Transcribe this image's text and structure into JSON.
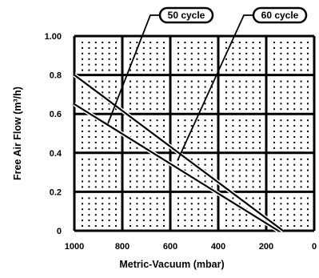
{
  "chart_data": {
    "type": "line",
    "title": "",
    "xlabel": "Metric-Vacuum (mbar)",
    "ylabel": "Free Air Flow (m³/h)",
    "xlim": [
      1000,
      0
    ],
    "ylim": [
      0,
      1.0
    ],
    "x_reversed": true,
    "grid": true,
    "grid_style": "dotted cells",
    "x_ticks": [
      "1000",
      "800",
      "600",
      "400",
      "200",
      "0"
    ],
    "y_ticks": [
      "0",
      "0.2",
      "0.4",
      "0.6",
      "0.8",
      "1.00"
    ],
    "series": [
      {
        "name": "50 cycle",
        "style": "solid",
        "x": [
          1000,
          150
        ],
        "y": [
          0.65,
          0.0
        ]
      },
      {
        "name": "60 cycle",
        "style": "solid",
        "x": [
          1000,
          130
        ],
        "y": [
          0.8,
          0.0
        ]
      }
    ],
    "annotations": [
      {
        "text": "50 cycle",
        "points_to_x": 860,
        "points_to_y": 0.55
      },
      {
        "text": "60 cycle",
        "points_to_x": 570,
        "points_to_y": 0.36
      }
    ]
  }
}
